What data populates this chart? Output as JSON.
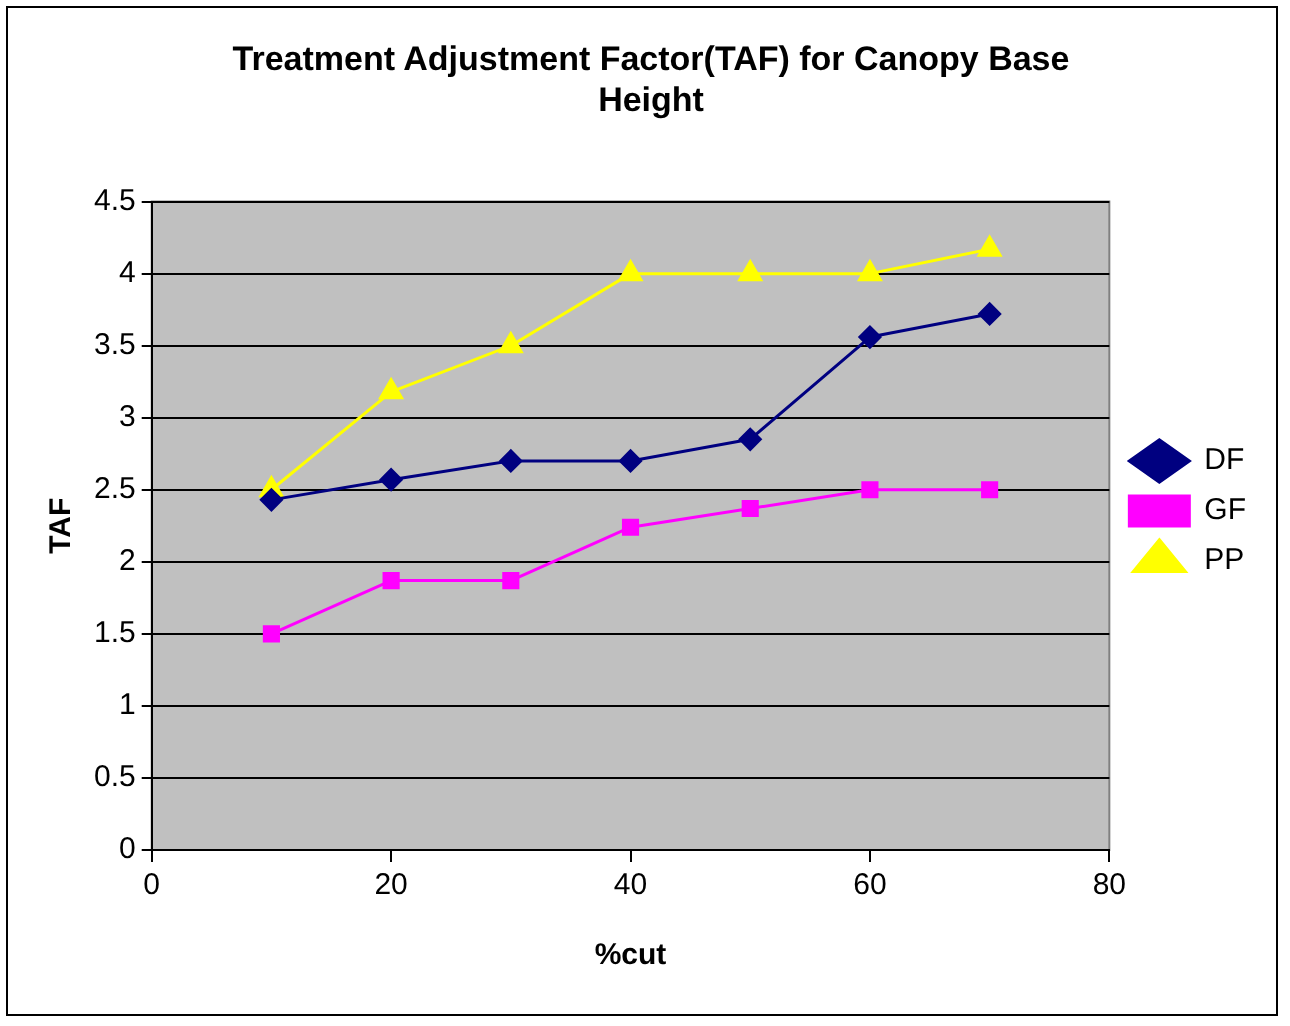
{
  "chart_data": {
    "type": "line",
    "title": "Treatment Adjustment Factor(TAF) for Canopy Base Height",
    "xlabel": "%cut",
    "ylabel": "TAF",
    "x": [
      10,
      20,
      30,
      40,
      50,
      60,
      70
    ],
    "series": [
      {
        "name": "DF",
        "color": "#000080",
        "marker": "diamond",
        "values": [
          2.43,
          2.57,
          2.7,
          2.7,
          2.85,
          3.56,
          3.72
        ]
      },
      {
        "name": "GF",
        "color": "#ff00ff",
        "marker": "square",
        "values": [
          1.5,
          1.87,
          1.87,
          2.24,
          2.37,
          2.5,
          2.5
        ]
      },
      {
        "name": "PP",
        "color": "#ffff00",
        "marker": "triangle",
        "values": [
          2.5,
          3.18,
          3.5,
          4,
          4,
          4,
          4.17
        ]
      }
    ],
    "xlim": [
      0,
      80
    ],
    "xticks": [
      0,
      20,
      40,
      60,
      80
    ],
    "ylim": [
      0,
      4.5
    ],
    "yticks": [
      0,
      0.5,
      1,
      1.5,
      2,
      2.5,
      3,
      3.5,
      4,
      4.5
    ],
    "grid": "y",
    "legend": "right",
    "line_style": "solid"
  }
}
